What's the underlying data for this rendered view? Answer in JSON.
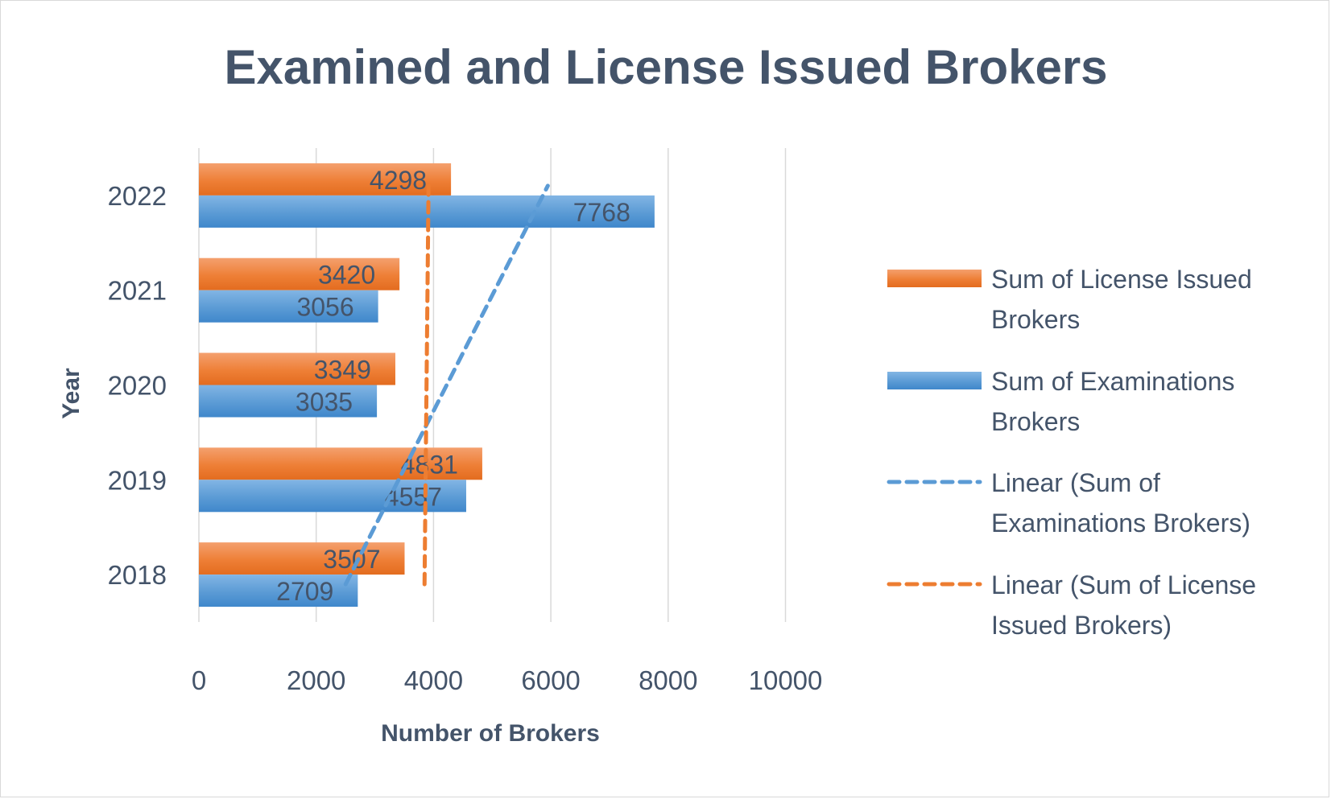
{
  "chart_data": {
    "type": "bar",
    "orientation": "horizontal",
    "title": "Examined and License Issued Brokers",
    "xlabel": "Number of Brokers",
    "ylabel": "Year",
    "categories": [
      "2018",
      "2019",
      "2020",
      "2021",
      "2022"
    ],
    "xlim": [
      0,
      10000
    ],
    "xticks": [
      0,
      2000,
      4000,
      6000,
      8000,
      10000
    ],
    "grid": "vertical",
    "legend_position": "right",
    "series": [
      {
        "name": "Sum of License Issued Brokers",
        "values": [
          3507,
          4831,
          3349,
          3420,
          4298
        ],
        "color": "#ed7d31"
      },
      {
        "name": "Sum of Examinations Brokers",
        "values": [
          2709,
          4557,
          3035,
          3056,
          7768
        ],
        "color": "#5b9bd5"
      }
    ],
    "trendlines": [
      {
        "name": "Linear (Sum of Examinations Brokers)",
        "type": "linear",
        "series": "Sum of Examinations Brokers",
        "color": "#5b9bd5",
        "style": "dashed"
      },
      {
        "name": "Linear (Sum of License Issued Brokers)",
        "type": "linear",
        "series": "Sum of License Issued Brokers",
        "color": "#ed7d31",
        "style": "dashed"
      }
    ],
    "legend": [
      {
        "lines": [
          "Sum of License Issued",
          "Brokers"
        ],
        "kind": "bar",
        "color": "#ed7d31"
      },
      {
        "lines": [
          "Sum of Examinations",
          "Brokers"
        ],
        "kind": "bar",
        "color": "#5b9bd5"
      },
      {
        "lines": [
          "Linear (Sum of",
          "Examinations Brokers)"
        ],
        "kind": "dash",
        "color": "#5b9bd5"
      },
      {
        "lines": [
          "Linear (Sum of License",
          "Issued Brokers)"
        ],
        "kind": "dash",
        "color": "#ed7d31"
      }
    ]
  }
}
